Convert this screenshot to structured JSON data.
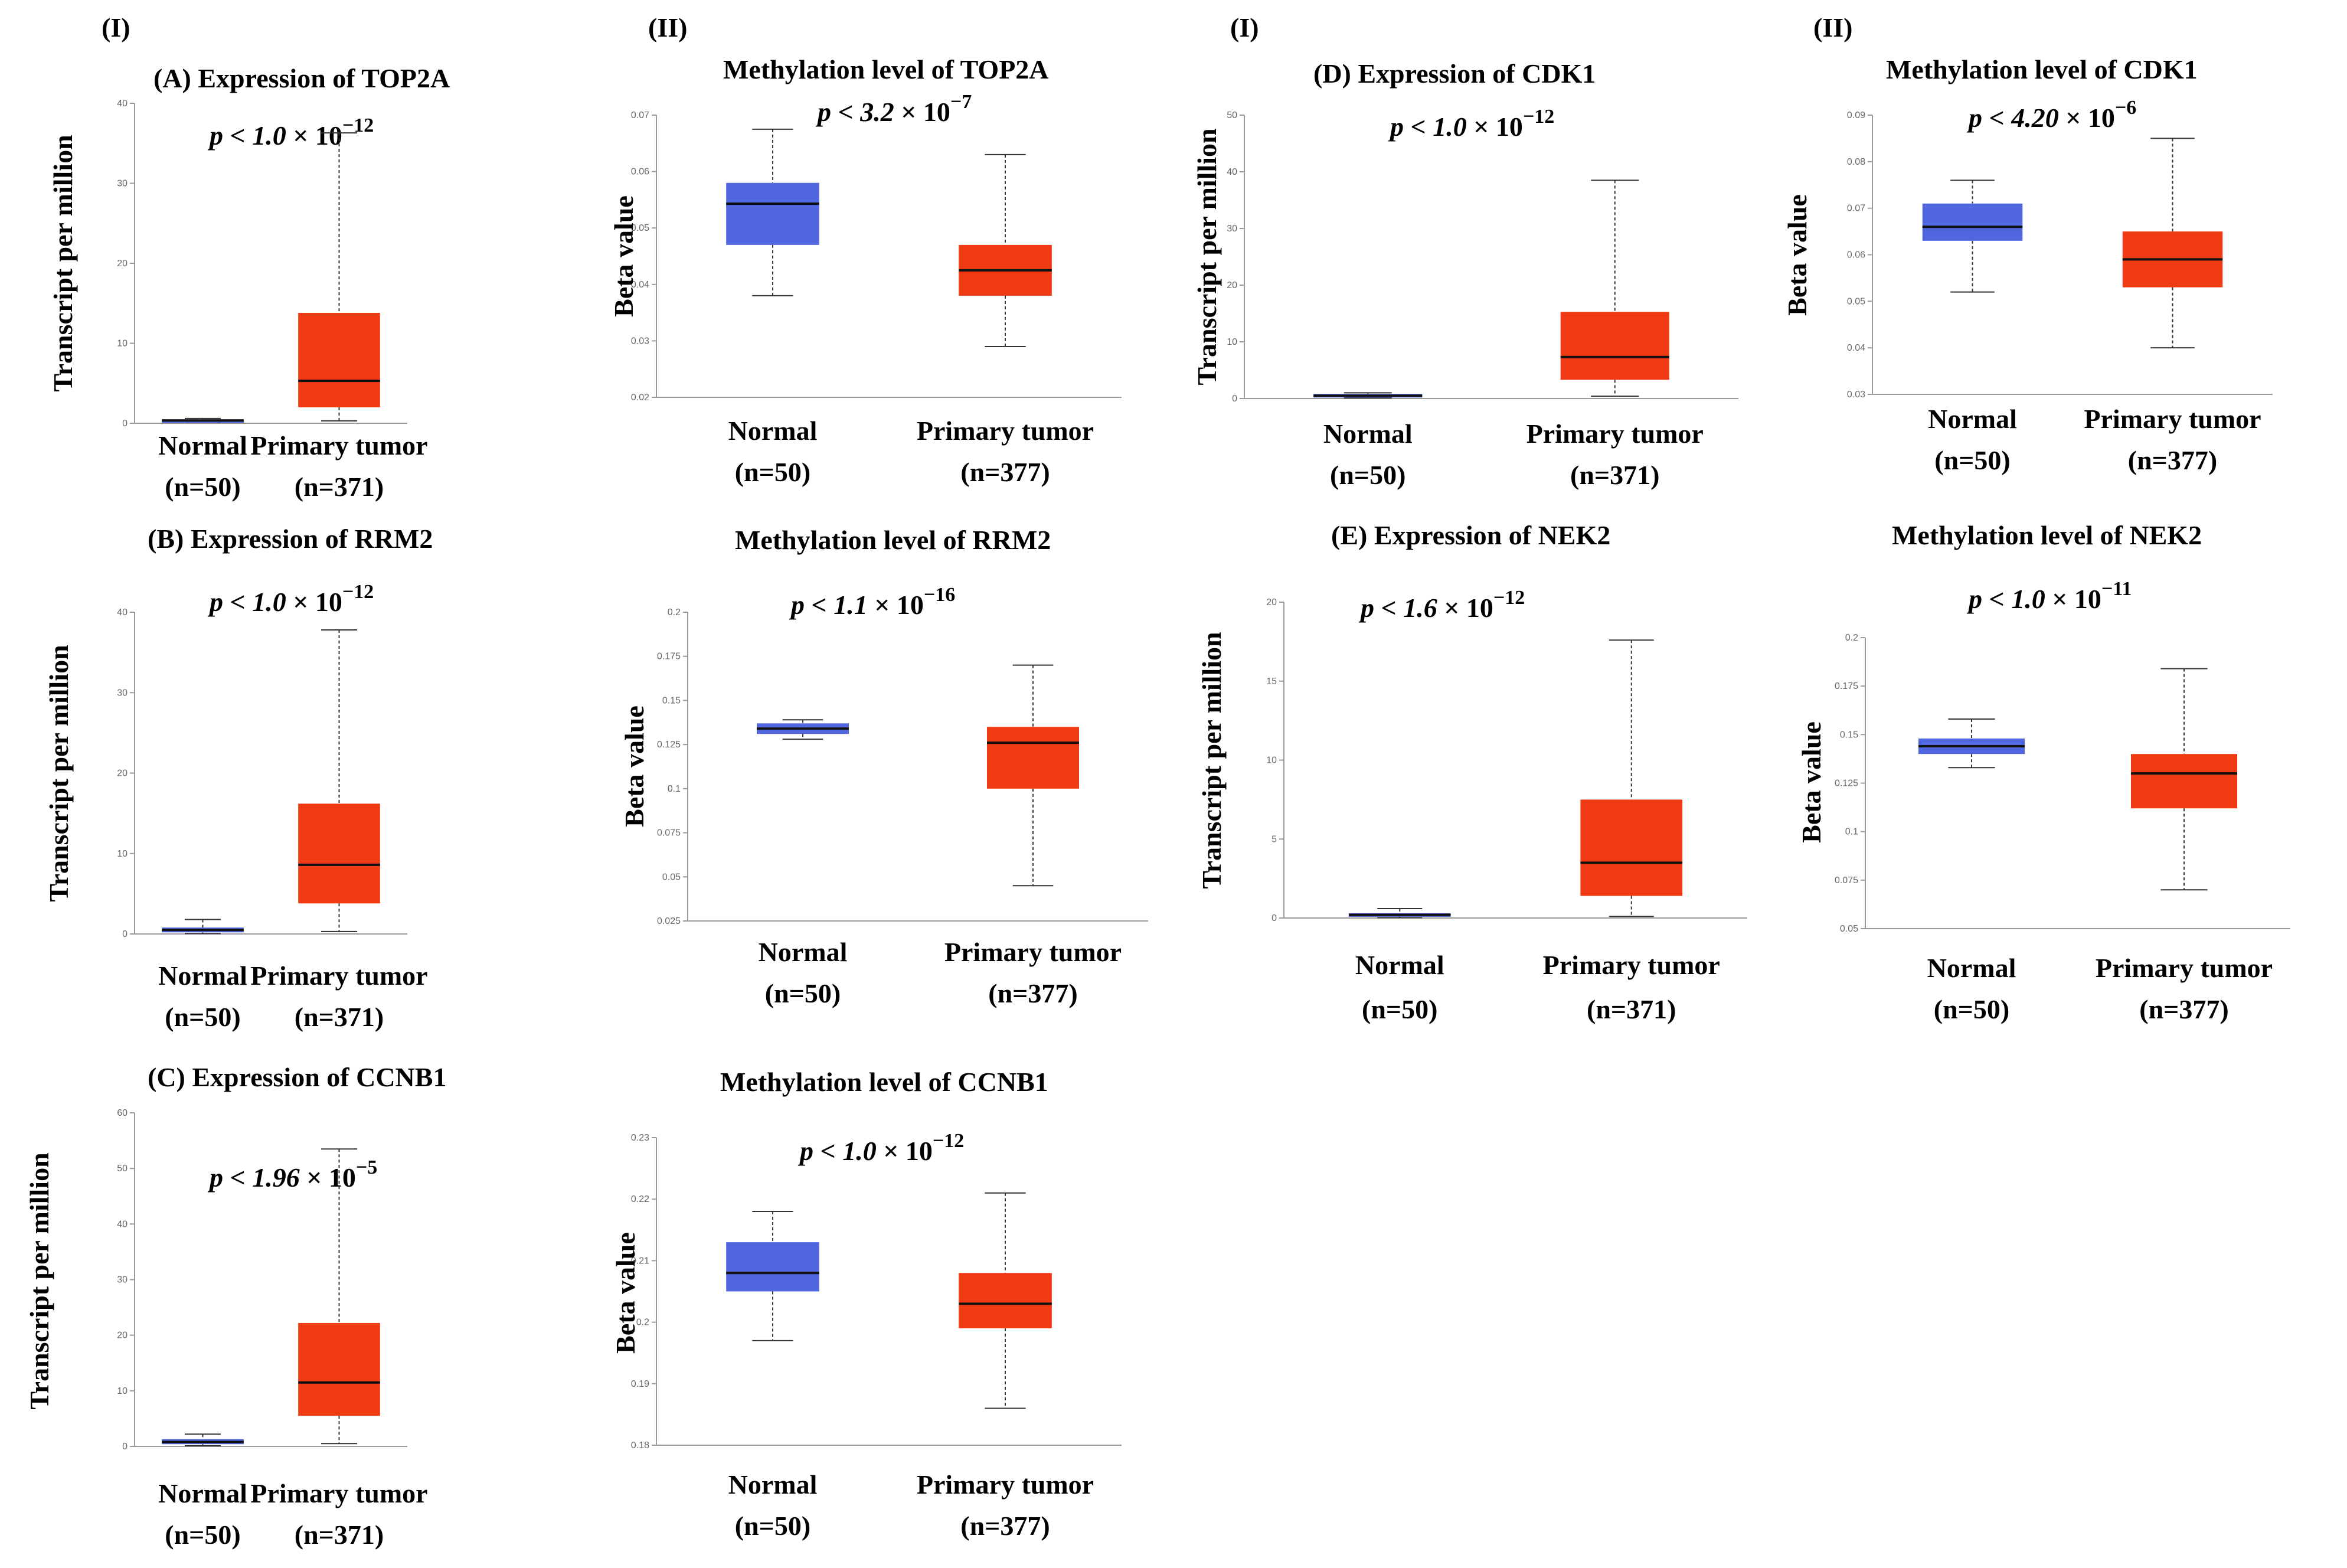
{
  "figure": {
    "background": "#ffffff"
  },
  "colors": {
    "normal": "#5067e0",
    "tumor": "#ef3a14",
    "median": "#111111",
    "whisker": "#333333"
  },
  "section_labels": [
    "(I)",
    "(II)",
    "(I)",
    "(II)"
  ],
  "chart_data": [
    {
      "id": "expr-top2a",
      "type": "box",
      "title": "(A) Expression of TOP2A",
      "p_prefix": "p < 1.0 ",
      "p_exp": "−12",
      "ylabel": "Transcript per million",
      "ylim": [
        0,
        40
      ],
      "ticks": [
        "0",
        "10",
        "20",
        "30",
        "40"
      ],
      "tick_values": [
        0,
        10,
        20,
        30,
        40
      ],
      "groups": [
        {
          "name": "Normal",
          "n": "(n=50)",
          "min": 0.1,
          "q1": 0.2,
          "median": 0.35,
          "q3": 0.5,
          "max": 0.6
        },
        {
          "name": "Primary tumor",
          "n": "(n=371)",
          "min": 0.3,
          "q1": 2.0,
          "median": 5.3,
          "q3": 13.8,
          "max": 36.3
        }
      ]
    },
    {
      "id": "meth-top2a",
      "type": "box",
      "title": "Methylation level of TOP2A",
      "p_prefix": "p < 3.2 ",
      "p_exp": "−7",
      "ylabel": "Beta value",
      "ylim": [
        0.02,
        0.07
      ],
      "ticks": [
        "0.02",
        "0.03",
        "0.04",
        "0.05",
        "0.06",
        "0.07"
      ],
      "tick_values": [
        0.02,
        0.03,
        0.04,
        0.05,
        0.06,
        0.07
      ],
      "groups": [
        {
          "name": "Normal",
          "n": "(n=50)",
          "min": 0.038,
          "q1": 0.047,
          "median": 0.0543,
          "q3": 0.058,
          "max": 0.0675
        },
        {
          "name": "Primary tumor",
          "n": "(n=377)",
          "min": 0.029,
          "q1": 0.038,
          "median": 0.0425,
          "q3": 0.047,
          "max": 0.063
        }
      ]
    },
    {
      "id": "expr-cdk1",
      "type": "box",
      "title": "(D) Expression of CDK1",
      "p_prefix": "p < 1.0 ",
      "p_exp": "−12",
      "ylabel": "Transcript per million",
      "ylim": [
        0,
        50
      ],
      "ticks": [
        "0",
        "10",
        "20",
        "30",
        "40",
        "50"
      ],
      "tick_values": [
        0,
        10,
        20,
        30,
        40,
        50
      ],
      "groups": [
        {
          "name": "Normal",
          "n": "(n=50)",
          "min": 0.1,
          "q1": 0.3,
          "median": 0.5,
          "q3": 0.8,
          "max": 1.0
        },
        {
          "name": "Primary tumor",
          "n": "(n=371)",
          "min": 0.4,
          "q1": 3.3,
          "median": 7.3,
          "q3": 15.3,
          "max": 38.5
        }
      ]
    },
    {
      "id": "meth-cdk1",
      "type": "box",
      "title": "Methylation level of CDK1",
      "p_prefix": "p < 4.20 ",
      "p_exp": "−6",
      "ylabel": "Beta value",
      "ylim": [
        0.03,
        0.09
      ],
      "ticks": [
        "0.03",
        "0.04",
        "0.05",
        "0.06",
        "0.07",
        "0.08",
        "0.09"
      ],
      "tick_values": [
        0.03,
        0.04,
        0.05,
        0.06,
        0.07,
        0.08,
        0.09
      ],
      "groups": [
        {
          "name": "Normal",
          "n": "(n=50)",
          "min": 0.052,
          "q1": 0.063,
          "median": 0.066,
          "q3": 0.071,
          "max": 0.076
        },
        {
          "name": "Primary tumor",
          "n": "(n=377)",
          "min": 0.04,
          "q1": 0.053,
          "median": 0.059,
          "q3": 0.065,
          "max": 0.085
        }
      ]
    },
    {
      "id": "expr-rrm2",
      "type": "box",
      "title": "(B) Expression of RRM2",
      "p_prefix": "p < 1.0 ",
      "p_exp": "−12",
      "ylabel": "Transcript per million",
      "ylim": [
        0,
        40
      ],
      "ticks": [
        "0",
        "10",
        "20",
        "30",
        "40"
      ],
      "tick_values": [
        0,
        10,
        20,
        30,
        40
      ],
      "groups": [
        {
          "name": "Normal",
          "n": "(n=50)",
          "min": 0.05,
          "q1": 0.2,
          "median": 0.5,
          "q3": 0.8,
          "max": 1.8
        },
        {
          "name": "Primary tumor",
          "n": "(n=371)",
          "min": 0.3,
          "q1": 3.8,
          "median": 8.6,
          "q3": 16.2,
          "max": 37.8
        }
      ]
    },
    {
      "id": "meth-rrm2",
      "type": "box",
      "title": "Methylation level of RRM2",
      "p_prefix": "p < 1.1 ",
      "p_exp": "−16",
      "ylabel": "Beta value",
      "ylim": [
        0.025,
        0.2
      ],
      "ticks": [
        "0.025",
        "0.05",
        "0.075",
        "0.1",
        "0.125",
        "0.15",
        "0.175",
        "0.2"
      ],
      "tick_values": [
        0.025,
        0.05,
        0.075,
        0.1,
        0.125,
        0.15,
        0.175,
        0.2
      ],
      "groups": [
        {
          "name": "Normal",
          "n": "(n=50)",
          "min": 0.128,
          "q1": 0.131,
          "median": 0.134,
          "q3": 0.137,
          "max": 0.139
        },
        {
          "name": "Primary tumor",
          "n": "(n=377)",
          "min": 0.045,
          "q1": 0.1,
          "median": 0.126,
          "q3": 0.135,
          "max": 0.17
        }
      ]
    },
    {
      "id": "expr-nek2",
      "type": "box",
      "title": "(E) Expression of NEK2",
      "p_prefix": "p < 1.6 ",
      "p_exp": "−12",
      "ylabel": "Transcript per million",
      "ylim": [
        0,
        20
      ],
      "ticks": [
        "0",
        "5",
        "10",
        "15",
        "20"
      ],
      "tick_values": [
        0,
        5,
        10,
        15,
        20
      ],
      "groups": [
        {
          "name": "Normal",
          "n": "(n=50)",
          "min": 0.02,
          "q1": 0.1,
          "median": 0.2,
          "q3": 0.3,
          "max": 0.6
        },
        {
          "name": "Primary tumor",
          "n": "(n=371)",
          "min": 0.1,
          "q1": 1.4,
          "median": 3.5,
          "q3": 7.5,
          "max": 17.6
        }
      ]
    },
    {
      "id": "meth-nek2",
      "type": "box",
      "title": "Methylation level of NEK2",
      "p_prefix": "p < 1.0 ",
      "p_exp": "−11",
      "ylabel": "Beta value",
      "ylim": [
        0.05,
        0.2
      ],
      "ticks": [
        "0.05",
        "0.075",
        "0.1",
        "0.125",
        "0.15",
        "0.175",
        "0.2"
      ],
      "tick_values": [
        0.05,
        0.075,
        0.1,
        0.125,
        0.15,
        0.175,
        0.2
      ],
      "groups": [
        {
          "name": "Normal",
          "n": "(n=50)",
          "min": 0.133,
          "q1": 0.14,
          "median": 0.144,
          "q3": 0.148,
          "max": 0.158
        },
        {
          "name": "Primary tumor",
          "n": "(n=377)",
          "min": 0.07,
          "q1": 0.112,
          "median": 0.13,
          "q3": 0.14,
          "max": 0.184
        }
      ]
    },
    {
      "id": "expr-ccnb1",
      "type": "box",
      "title": "(C) Expression of CCNB1",
      "p_prefix": "p < 1.96 ",
      "p_exp": "−5",
      "ylabel": "Transcript per million",
      "ylim": [
        0,
        60
      ],
      "ticks": [
        "0",
        "10",
        "20",
        "30",
        "40",
        "50",
        "60"
      ],
      "tick_values": [
        0,
        10,
        20,
        30,
        40,
        50,
        60
      ],
      "groups": [
        {
          "name": "Normal",
          "n": "(n=50)",
          "min": 0.1,
          "q1": 0.4,
          "median": 0.8,
          "q3": 1.3,
          "max": 2.2
        },
        {
          "name": "Primary tumor",
          "n": "(n=371)",
          "min": 0.5,
          "q1": 5.5,
          "median": 11.5,
          "q3": 22.2,
          "max": 53.5
        }
      ]
    },
    {
      "id": "meth-ccnb1",
      "type": "box",
      "title": "Methylation level of CCNB1",
      "p_prefix": "p < 1.0 ",
      "p_exp": "−12",
      "ylabel": "Beta value",
      "ylim": [
        0.18,
        0.23
      ],
      "ticks": [
        "0.18",
        "0.19",
        "0.2",
        "0.21",
        "0.22",
        "0.23"
      ],
      "tick_values": [
        0.18,
        0.19,
        0.2,
        0.21,
        0.22,
        0.23
      ],
      "groups": [
        {
          "name": "Normal",
          "n": "(n=50)",
          "min": 0.197,
          "q1": 0.205,
          "median": 0.208,
          "q3": 0.213,
          "max": 0.218
        },
        {
          "name": "Primary tumor",
          "n": "(n=377)",
          "min": 0.186,
          "q1": 0.199,
          "median": 0.203,
          "q3": 0.208,
          "max": 0.221
        }
      ]
    }
  ]
}
